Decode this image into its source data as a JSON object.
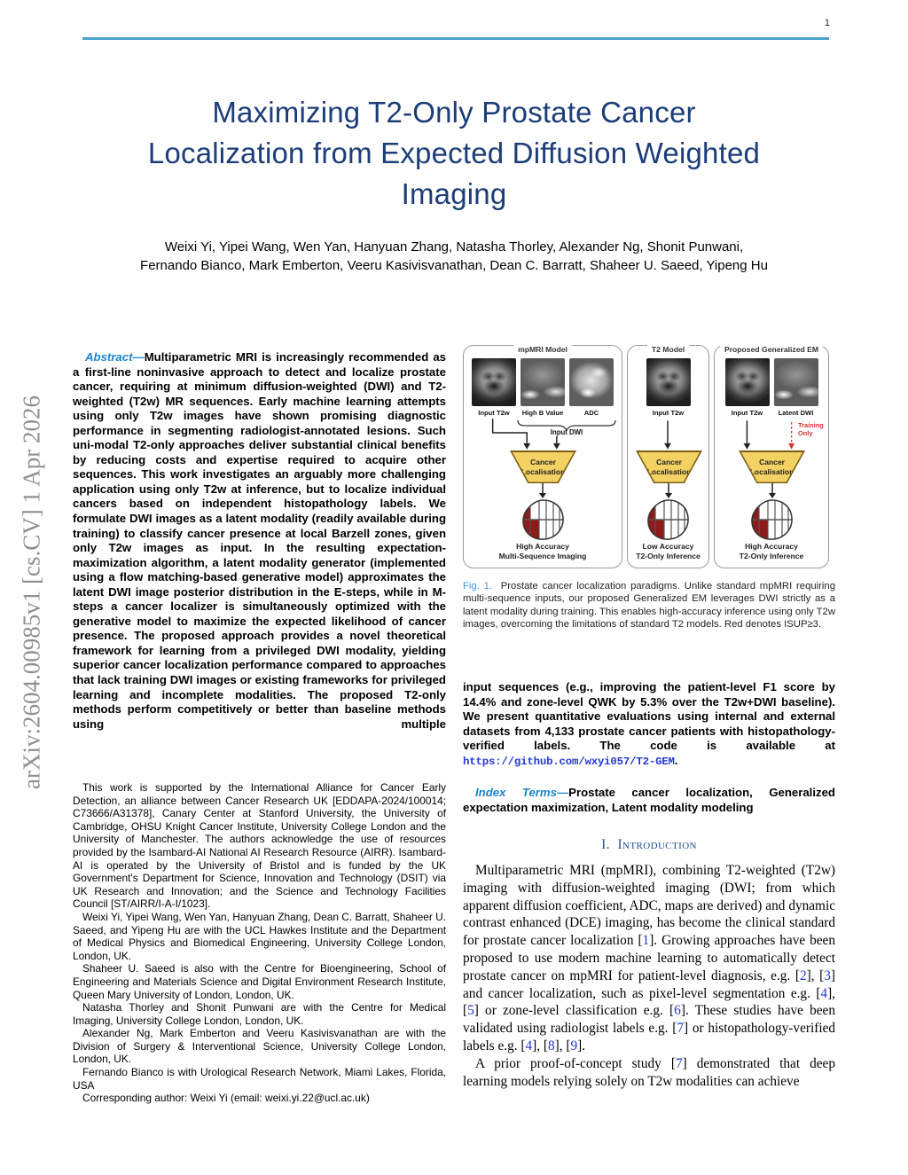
{
  "page_number": "1",
  "arxiv_sidebar": "arXiv:2604.00985v1  [cs.CV]  1 Apr 2026",
  "title_lines": [
    "Maximizing T2-Only Prostate Cancer",
    "Localization from Expected Diffusion Weighted",
    "Imaging"
  ],
  "author_lines": [
    "Weixi Yi, Yipei Wang, Wen Yan, Hanyuan Zhang, Natasha Thorley, Alexander Ng, Shonit Punwani,",
    "Fernando Bianco, Mark Emberton, Veeru Kasivisvanathan, Dean C. Barratt, Shaheer U. Saeed, Yipeng Hu"
  ],
  "abstract_rich": [
    {
      "t": "Abstract—",
      "s": "lead"
    },
    {
      "t": "Multiparametric MRI is increasingly recommended as a first-line noninvasive approach to detect and localize prostate cancer, requiring at minimum diffusion-weighted (DWI) and T2-weighted (T2w) MR sequences. Early machine learning attempts using only T2w images have shown promising diagnostic performance in segmenting radiologist-annotated lesions. Such uni-modal T2-only approaches deliver substantial clinical benefits by reducing costs and expertise required to acquire other sequences. This work investigates an arguably more challenging application using only T2w at inference, but to localize individual cancers based on independent histopathology labels. We formulate DWI images as a latent modality (readily available during training) to classify cancer presence at local Barzell zones, given only T2w images as input. In the resulting expectation-maximization algorithm, a latent modality generator (implemented using a flow matching-based generative model) approximates the latent DWI image posterior distribution in the E-steps, while in M-steps a cancer localizer is simultaneously optimized with the generative model to maximize the expected likelihood of cancer presence. The proposed approach provides a novel theoretical framework for learning from a privileged DWI modality, yielding superior cancer localization performance compared to approaches that lack training DWI images or existing frameworks for privileged learning and incomplete modalities. The proposed T2-only methods perform competitively or better than baseline methods using multiple"
    }
  ],
  "footnotes": [
    "This work is supported by the International Alliance for Cancer Early Detection, an alliance between Cancer Research UK [EDDAPA-2024/100014; C73666/A31378], Canary Center at Stanford University, the University of Cambridge, OHSU Knight Cancer Institute, University College London and the University of Manchester. The authors acknowledge the use of resources provided by the Isambard-AI National AI Research Resource (AIRR). Isambard-AI is operated by the University of Bristol and is funded by the UK Government's Department for Science, Innovation and Technology (DSIT) via UK Research and Innovation; and the Science and Technology Facilities Council [ST/AIRR/I-A-I/1023].",
    "Weixi Yi, Yipei Wang, Wen Yan, Hanyuan Zhang, Dean C. Barratt, Shaheer U. Saeed, and Yipeng Hu are with the UCL Hawkes Institute and the Department of Medical Physics and Biomedical Engineering, University College London, London, UK.",
    "Shaheer U. Saeed is also with the Centre for Bioengineering, School of Engineering and Materials Science and Digital Environment Research Institute, Queen Mary University of London, London, UK.",
    "Natasha Thorley and Shonit Punwani are with the Centre for Medical Imaging, University College London, London, UK.",
    "Alexander Ng, Mark Emberton and Veeru Kasivisvanathan are with the Division of Surgery & Interventional Science, University College London, London, UK.",
    "Fernando Bianco is with Urological Research Network, Miami Lakes, Florida, USA",
    "Corresponding author: Weixi Yi (email: weixi.yi.22@ucl.ac.uk)"
  ],
  "figure": {
    "panels": [
      {
        "title": "mpMRI Model",
        "image_labels": [
          "Input T2w",
          "High B Value",
          "ADC"
        ],
        "brace_label": "Input DWI",
        "box_label": "Cancer Localisation",
        "result_line1": "High Accuracy",
        "result_line2": "Multi-Sequence Imaging"
      },
      {
        "title": "T2 Model",
        "image_labels": [
          "Input T2w"
        ],
        "box_label": "Cancer Localisation",
        "result_line1": "Low Accuracy",
        "result_line2": "T2-Only Inference"
      },
      {
        "title": "Proposed Generalized EM",
        "image_labels": [
          "Input T2w",
          "Latent DWI"
        ],
        "training_note_line1": "Training",
        "training_note_line2": "Only",
        "box_label": "Cancer Localisation",
        "result_line1": "High Accuracy",
        "result_line2": "T2-Only Inference"
      }
    ],
    "caption_rich": [
      {
        "t": "Fig. 1.",
        "s": "figlabel"
      },
      {
        "t": "  Prostate cancer localization paradigms. Unlike standard mpMRI requiring multi-sequence inputs, our proposed Generalized EM leverages DWI strictly as a latent modality during training. This enables high-accuracy inference using only T2w images, overcoming the limitations of standard T2 models. Red denotes ISUP≥3."
      }
    ]
  },
  "abstract_cont_rich": [
    {
      "t": "input sequences (e.g., improving the patient-level F1 score by 14.4% and zone-level QWK by 5.3% over the T2w+DWI baseline). We present quantitative evaluations using internal and external datasets from 4,133 prostate cancer patients with histopathology-verified labels. The code is available at "
    },
    {
      "t": "https://github.com/wxyi057/T2-GEM",
      "s": "url"
    },
    {
      "t": "."
    }
  ],
  "index_terms_rich": [
    {
      "t": "Index Terms—",
      "s": "lead"
    },
    {
      "t": "Prostate cancer localization, Generalized expectation maximization, Latent modality modeling"
    }
  ],
  "section1": {
    "number": "I.",
    "title": "Introduction"
  },
  "intro": {
    "p1_rich": [
      {
        "t": "Multiparametric MRI (mpMRI), combining T2-weighted (T2w) imaging with diffusion-weighted imaging (DWI; from which apparent diffusion coefficient, ADC, maps are derived) and dynamic contrast enhanced (DCE) imaging, has become the clinical standard for prostate cancer localization ["
      },
      {
        "t": "1",
        "s": "cite"
      },
      {
        "t": "]. Growing approaches have been proposed to use modern machine learning to automatically detect prostate cancer on mpMRI for patient-level diagnosis, e.g. ["
      },
      {
        "t": "2",
        "s": "cite"
      },
      {
        "t": "], ["
      },
      {
        "t": "3",
        "s": "cite"
      },
      {
        "t": "] and cancer localization, such as pixel-level segmentation e.g. ["
      },
      {
        "t": "4",
        "s": "cite"
      },
      {
        "t": "], ["
      },
      {
        "t": "5",
        "s": "cite"
      },
      {
        "t": "] or zone-level classification e.g. ["
      },
      {
        "t": "6",
        "s": "cite"
      },
      {
        "t": "]. These studies have been validated using radiologist labels e.g. ["
      },
      {
        "t": "7",
        "s": "cite"
      },
      {
        "t": "] or histopathology-verified labels e.g. ["
      },
      {
        "t": "4",
        "s": "cite"
      },
      {
        "t": "], ["
      },
      {
        "t": "8",
        "s": "cite"
      },
      {
        "t": "], ["
      },
      {
        "t": "9",
        "s": "cite"
      },
      {
        "t": "]."
      }
    ],
    "p2_rich": [
      {
        "t": "A prior proof-of-concept study ["
      },
      {
        "t": "7",
        "s": "cite"
      },
      {
        "t": "] demonstrated that deep learning models relying solely on T2w modalities can achieve"
      }
    ]
  },
  "colors": {
    "top_rule": "#4aa3c9",
    "title_navy": "#1c3d78",
    "section_heading_blue": "#20508c",
    "lead_in_blue": "#1a85cc",
    "citation_blue": "#2433cc",
    "url_blue": "#2438d2",
    "fig_label_blue": "#4694d1",
    "training_only_red": "#d43535",
    "zone_red": "#8e1a1a",
    "box_yellow": "#f3d263",
    "box_border": "#7a5c14"
  }
}
